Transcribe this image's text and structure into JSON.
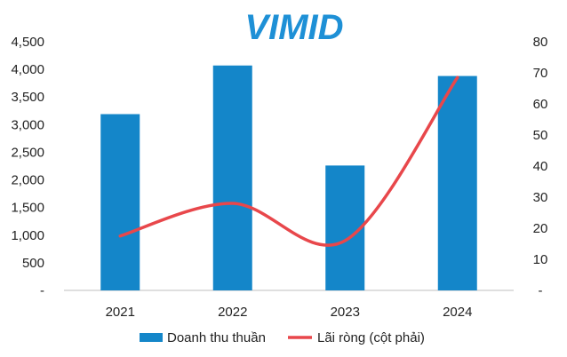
{
  "logo": {
    "text": "VIMID",
    "color": "#1e90d6"
  },
  "chart_data": {
    "type": "bar",
    "categories": [
      "2021",
      "2022",
      "2023",
      "2024"
    ],
    "series": [
      {
        "name": "Doanh thu thuần",
        "type": "bar",
        "axis": "left",
        "values": [
          3190,
          4070,
          2260,
          3880
        ],
        "color": "#1486c9"
      },
      {
        "name": "Lãi ròng (cột phải)",
        "type": "line",
        "axis": "right",
        "smooth": true,
        "values": [
          17.5,
          28,
          16,
          68.5
        ],
        "color": "#e8474b"
      }
    ],
    "y_left": {
      "min": 0,
      "max": 4500,
      "tick_labels": [
        "-",
        "500",
        "1,000",
        "1,500",
        "2,000",
        "2,500",
        "3,000",
        "3,500",
        "4,000",
        "4,500"
      ]
    },
    "y_right": {
      "min": 0,
      "max": 80,
      "tick_labels": [
        "-",
        "10",
        "20",
        "30",
        "40",
        "50",
        "60",
        "70",
        "80"
      ]
    },
    "grid": false,
    "legend_position": "bottom"
  }
}
